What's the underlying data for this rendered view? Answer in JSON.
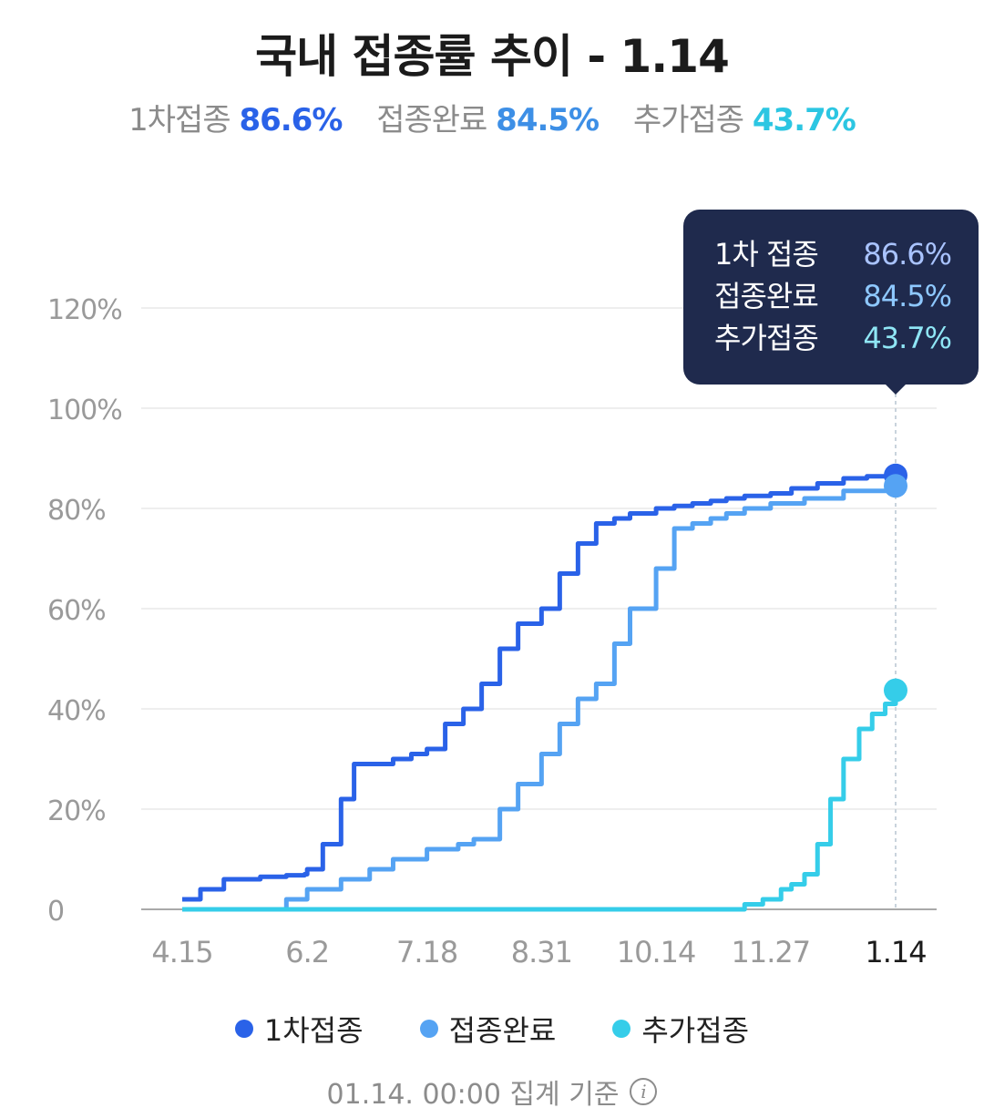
{
  "title": "국내 접종률 추이 - 1.14",
  "summary": [
    {
      "label": "1차접종",
      "value": "86.6%"
    },
    {
      "label": "접종완료",
      "value": "84.5%"
    },
    {
      "label": "추가접종",
      "value": "43.7%"
    }
  ],
  "tooltip": {
    "rows": [
      {
        "label": "1차 접종",
        "value": "86.6%"
      },
      {
        "label": "접종완료",
        "value": "84.5%"
      },
      {
        "label": "추가접종",
        "value": "43.7%"
      }
    ]
  },
  "legend": [
    "1차접종",
    "접종완료",
    "추가접종"
  ],
  "footer": {
    "text": "01.14. 00:00 집계 기준",
    "icon": "info-icon"
  },
  "colors": {
    "first": "#2a62e8",
    "complete": "#55a3f3",
    "booster": "#35cde9",
    "tooltip_bg": "#1f2a4d"
  },
  "chart_data": {
    "type": "line",
    "title": "국내 접종률 추이 - 1.14",
    "x_ticks": [
      "4.15",
      "6.2",
      "7.18",
      "8.31",
      "10.14",
      "11.27",
      "1.14"
    ],
    "y_ticks": [
      "0",
      "20%",
      "40%",
      "60%",
      "80%",
      "100%",
      "120%"
    ],
    "ylim": [
      0,
      120
    ],
    "grid": true,
    "legend_position": "bottom",
    "highlight_tick": "1.14",
    "series": [
      {
        "name": "1차접종",
        "color": "#2a62e8",
        "x": [
          "4.15",
          "4.22",
          "5.1",
          "5.15",
          "5.25",
          "6.1",
          "6.2",
          "6.8",
          "6.15",
          "6.20",
          "6.26",
          "7.5",
          "7.12",
          "7.18",
          "7.25",
          "8.1",
          "8.8",
          "8.15",
          "8.22",
          "8.31",
          "9.7",
          "9.14",
          "9.21",
          "9.28",
          "10.4",
          "10.14",
          "10.21",
          "10.28",
          "11.4",
          "11.10",
          "11.17",
          "11.27",
          "12.5",
          "12.15",
          "12.25",
          "1.3",
          "1.14"
        ],
        "values": [
          2,
          4,
          6,
          6.5,
          6.8,
          7,
          8,
          13,
          22,
          29,
          29,
          30,
          31,
          32,
          37,
          40,
          45,
          52,
          57,
          60,
          67,
          73,
          77,
          78,
          79,
          80,
          80.5,
          81,
          81.5,
          82,
          82.5,
          83,
          84,
          85,
          86,
          86.4,
          86.6
        ]
      },
      {
        "name": "접종완료",
        "color": "#55a3f3",
        "x": [
          "4.15",
          "5.10",
          "5.25",
          "6.2",
          "6.15",
          "6.26",
          "7.5",
          "7.18",
          "7.30",
          "8.5",
          "8.15",
          "8.22",
          "8.31",
          "9.7",
          "9.14",
          "9.21",
          "9.28",
          "10.4",
          "10.14",
          "10.21",
          "10.28",
          "11.4",
          "11.10",
          "11.17",
          "11.27",
          "12.10",
          "12.25",
          "1.14"
        ],
        "values": [
          0,
          0,
          2,
          4,
          6,
          8,
          10,
          12,
          13,
          14,
          20,
          25,
          31,
          37,
          42,
          45,
          53,
          60,
          68,
          76,
          77,
          78,
          79,
          80,
          81,
          82,
          83.5,
          84.5
        ]
      },
      {
        "name": "추가접종",
        "color": "#35cde9",
        "x": [
          "4.15",
          "11.10",
          "11.17",
          "11.24",
          "12.1",
          "12.5",
          "12.10",
          "12.15",
          "12.20",
          "12.25",
          "12.31",
          "1.5",
          "1.10",
          "1.14"
        ],
        "values": [
          0,
          0,
          1,
          2,
          4,
          5,
          7,
          13,
          22,
          30,
          36,
          39,
          41,
          43.7
        ]
      }
    ]
  }
}
